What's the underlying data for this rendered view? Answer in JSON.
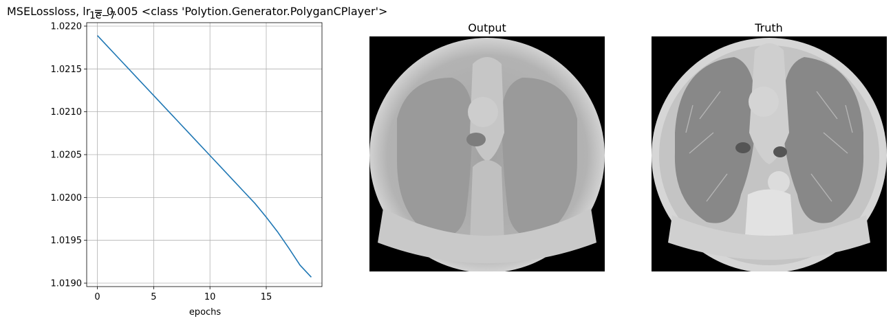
{
  "figure_title": "MSELossloss, lr = 0.005 <class 'Polytion.Generator.PolyganCPlayer'>",
  "chart_data": {
    "type": "line",
    "title": "",
    "xlabel": "epochs",
    "ylabel": "",
    "offset_text": "1e−7",
    "grid": true,
    "xlim": [
      -0.95,
      19.95
    ],
    "ylim": [
      1.01896,
      1.02204
    ],
    "x_ticks": [
      0,
      5,
      10,
      15
    ],
    "y_ticks": [
      1.019,
      1.0195,
      1.02,
      1.0205,
      1.021,
      1.0215,
      1.022
    ],
    "y_tick_labels": [
      "1.0190",
      "1.0195",
      "1.0200",
      "1.0205",
      "1.0210",
      "1.0215",
      "1.0220"
    ],
    "series": [
      {
        "color": "#1f77b4",
        "x": [
          0,
          1,
          2,
          3,
          4,
          5,
          6,
          7,
          8,
          9,
          10,
          11,
          12,
          13,
          14,
          15,
          16,
          17,
          18,
          19
        ],
        "y": [
          1.02189,
          1.02175,
          1.02161,
          1.02147,
          1.02133,
          1.02119,
          1.02105,
          1.02091,
          1.02077,
          1.02063,
          1.02049,
          1.02035,
          1.02021,
          1.02007,
          1.01993,
          1.01977,
          1.0196,
          1.01941,
          1.01921,
          1.01907
        ]
      }
    ]
  },
  "panels": [
    {
      "title": "Output",
      "image": "ct-scan-output"
    },
    {
      "title": "Truth",
      "image": "ct-scan-truth"
    }
  ]
}
